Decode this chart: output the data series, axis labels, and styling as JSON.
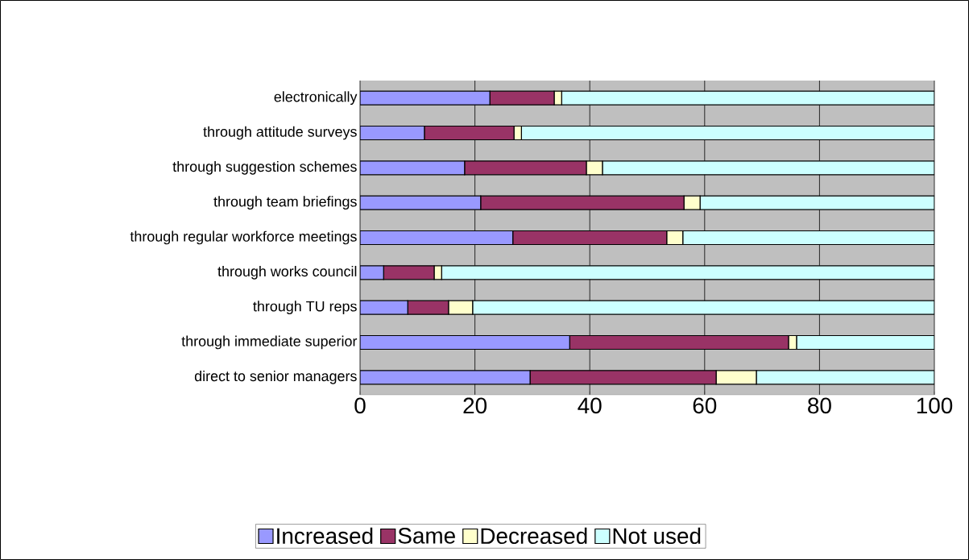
{
  "chart_data": {
    "type": "bar",
    "orientation": "horizontal",
    "stacked": true,
    "categories": [
      "electronically",
      "through attitude surveys",
      "through suggestion schemes",
      "through team briefings",
      "through regular workforce meetings",
      "through works council",
      "through TU reps",
      "through immediate superior",
      "direct to senior managers"
    ],
    "series": [
      {
        "name": "Increased",
        "color": "#9999ff",
        "values": [
          22.6,
          11.2,
          18.2,
          21.0,
          26.6,
          4.1,
          8.3,
          36.5,
          29.6
        ]
      },
      {
        "name": "Same",
        "color": "#993366",
        "values": [
          11.2,
          15.6,
          21.2,
          35.4,
          26.8,
          8.8,
          7.1,
          38.1,
          32.4
        ]
      },
      {
        "name": "Decreased",
        "color": "#ffffcc",
        "values": [
          1.3,
          1.3,
          2.8,
          2.8,
          2.8,
          1.3,
          4.2,
          1.4,
          7.0
        ]
      },
      {
        "name": "Not used",
        "color": "#ccffff",
        "values": [
          64.9,
          71.9,
          57.8,
          40.8,
          43.8,
          85.8,
          80.4,
          24.0,
          31.0
        ]
      }
    ],
    "xlim": [
      0,
      100
    ],
    "xticks": [
      0,
      20,
      40,
      60,
      80,
      100
    ],
    "grid": "x",
    "legend": "bottom"
  }
}
